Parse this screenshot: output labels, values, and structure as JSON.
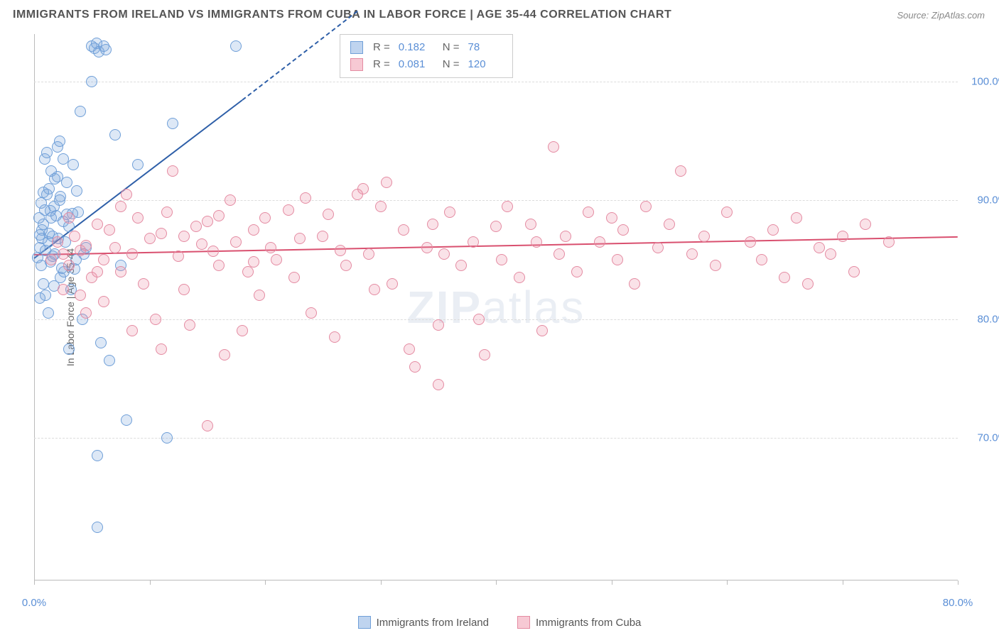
{
  "title": "IMMIGRANTS FROM IRELAND VS IMMIGRANTS FROM CUBA IN LABOR FORCE | AGE 35-44 CORRELATION CHART",
  "source": "Source: ZipAtlas.com",
  "y_axis_title": "In Labor Force | Age 35-44",
  "watermark_bold": "ZIP",
  "watermark_rest": "atlas",
  "chart": {
    "type": "scatter",
    "background_color": "#ffffff",
    "grid_color": "#dcdcdc",
    "axis_color": "#bbbbbb",
    "label_color": "#5b8fd6",
    "xlim": [
      0,
      80
    ],
    "ylim": [
      58,
      104
    ],
    "x_ticks": [
      0,
      10,
      20,
      30,
      40,
      50,
      60,
      70,
      80
    ],
    "x_tick_labels": {
      "0": "0.0%",
      "80": "80.0%"
    },
    "y_ticks": [
      70,
      80,
      90,
      100
    ],
    "y_tick_labels": {
      "70": "70.0%",
      "80": "80.0%",
      "90": "90.0%",
      "100": "100.0%"
    },
    "label_fontsize": 15,
    "marker_radius": 8,
    "marker_stroke_width": 1.5,
    "marker_fill_opacity": 0.25
  },
  "series": [
    {
      "name": "Immigrants from Ireland",
      "swatch_fill": "#bfd4ef",
      "swatch_border": "#6f9fd8",
      "marker_fill": "rgba(120,165,220,0.25)",
      "marker_stroke": "#6f9fd8",
      "trend_color": "#2e5fa8",
      "R": "0.182",
      "N": "78",
      "trend": {
        "x1": 0,
        "y1": 85.2,
        "x2": 18,
        "y2": 98.5,
        "dash_to_x": 28,
        "dash_to_y": 106
      },
      "points": [
        [
          0.3,
          85.2
        ],
        [
          0.5,
          86.0
        ],
        [
          0.6,
          84.5
        ],
        [
          0.7,
          87.5
        ],
        [
          0.8,
          88.0
        ],
        [
          0.9,
          89.2
        ],
        [
          1.0,
          85.8
        ],
        [
          1.1,
          90.5
        ],
        [
          1.2,
          86.5
        ],
        [
          1.3,
          91.0
        ],
        [
          1.4,
          84.8
        ],
        [
          1.5,
          88.5
        ],
        [
          1.6,
          87.0
        ],
        [
          1.7,
          89.5
        ],
        [
          1.8,
          85.5
        ],
        [
          2.0,
          92.0
        ],
        [
          2.1,
          86.8
        ],
        [
          2.2,
          90.0
        ],
        [
          2.3,
          83.5
        ],
        [
          2.5,
          88.2
        ],
        [
          2.6,
          84.0
        ],
        [
          2.8,
          91.5
        ],
        [
          3.0,
          87.8
        ],
        [
          3.2,
          82.5
        ],
        [
          3.4,
          93.0
        ],
        [
          3.6,
          85.0
        ],
        [
          3.8,
          89.0
        ],
        [
          4.0,
          97.5
        ],
        [
          4.2,
          80.0
        ],
        [
          4.5,
          86.0
        ],
        [
          5.0,
          103.0
        ],
        [
          5.2,
          102.8
        ],
        [
          5.4,
          103.2
        ],
        [
          5.6,
          102.5
        ],
        [
          5.8,
          78.0
        ],
        [
          6.0,
          103.0
        ],
        [
          6.2,
          102.7
        ],
        [
          6.5,
          76.5
        ],
        [
          7.0,
          95.5
        ],
        [
          7.5,
          84.5
        ],
        [
          8.0,
          71.5
        ],
        [
          9.0,
          93.0
        ],
        [
          3.0,
          77.5
        ],
        [
          0.8,
          83.0
        ],
        [
          1.0,
          82.0
        ],
        [
          1.2,
          80.5
        ],
        [
          0.5,
          81.8
        ],
        [
          2.0,
          94.5
        ],
        [
          5.5,
          68.5
        ],
        [
          5.5,
          62.5
        ],
        [
          11.5,
          70.0
        ],
        [
          12.0,
          96.5
        ],
        [
          17.5,
          103.0
        ],
        [
          5.0,
          100.0
        ],
        [
          3.5,
          84.2
        ],
        [
          2.8,
          88.8
        ],
        [
          1.5,
          92.5
        ],
        [
          0.9,
          93.5
        ],
        [
          1.1,
          94.0
        ],
        [
          2.2,
          95.0
        ],
        [
          0.4,
          88.5
        ],
        [
          0.6,
          89.8
        ],
        [
          1.8,
          91.8
        ],
        [
          2.5,
          93.5
        ],
        [
          0.7,
          86.8
        ],
        [
          1.3,
          87.2
        ],
        [
          1.6,
          85.3
        ],
        [
          1.9,
          88.7
        ],
        [
          2.3,
          90.3
        ],
        [
          0.5,
          87.1
        ],
        [
          1.4,
          89.1
        ],
        [
          2.7,
          86.5
        ],
        [
          3.3,
          88.9
        ],
        [
          3.7,
          90.8
        ],
        [
          4.3,
          85.5
        ],
        [
          1.7,
          82.8
        ],
        [
          2.4,
          84.3
        ],
        [
          0.8,
          90.7
        ]
      ]
    },
    {
      "name": "Immigrants from Cuba",
      "swatch_fill": "#f7c9d4",
      "swatch_border": "#e48ba2",
      "marker_fill": "rgba(235,140,165,0.25)",
      "marker_stroke": "#e48ba2",
      "trend_color": "#d9506f",
      "R": "0.081",
      "N": "120",
      "trend": {
        "x1": 0,
        "y1": 85.5,
        "x2": 80,
        "y2": 87.0
      },
      "points": [
        [
          1.5,
          85.0
        ],
        [
          2.0,
          86.5
        ],
        [
          2.5,
          85.5
        ],
        [
          3.0,
          84.5
        ],
        [
          3.5,
          87.0
        ],
        [
          4.0,
          85.8
        ],
        [
          4.5,
          86.2
        ],
        [
          5.0,
          83.5
        ],
        [
          5.5,
          88.0
        ],
        [
          6.0,
          85.0
        ],
        [
          6.5,
          87.5
        ],
        [
          7.0,
          86.0
        ],
        [
          7.5,
          84.0
        ],
        [
          8.0,
          90.5
        ],
        [
          8.5,
          85.5
        ],
        [
          9.0,
          88.5
        ],
        [
          9.5,
          83.0
        ],
        [
          10.0,
          86.8
        ],
        [
          10.5,
          80.0
        ],
        [
          11.0,
          87.2
        ],
        [
          11.5,
          89.0
        ],
        [
          12.0,
          92.5
        ],
        [
          12.5,
          85.3
        ],
        [
          13.0,
          82.5
        ],
        [
          13.5,
          79.5
        ],
        [
          14.0,
          87.8
        ],
        [
          14.5,
          86.3
        ],
        [
          15.0,
          88.2
        ],
        [
          15.5,
          85.7
        ],
        [
          16.0,
          84.5
        ],
        [
          16.5,
          77.0
        ],
        [
          17.0,
          90.0
        ],
        [
          17.5,
          86.5
        ],
        [
          18.0,
          79.0
        ],
        [
          18.5,
          84.0
        ],
        [
          19.0,
          87.5
        ],
        [
          19.5,
          82.0
        ],
        [
          20.0,
          88.5
        ],
        [
          20.5,
          86.0
        ],
        [
          21.0,
          85.0
        ],
        [
          22.0,
          89.2
        ],
        [
          22.5,
          83.5
        ],
        [
          23.0,
          86.8
        ],
        [
          24.0,
          80.5
        ],
        [
          25.0,
          87.0
        ],
        [
          25.5,
          88.8
        ],
        [
          26.0,
          78.5
        ],
        [
          27.0,
          84.5
        ],
        [
          28.0,
          90.5
        ],
        [
          28.5,
          91.0
        ],
        [
          29.0,
          85.5
        ],
        [
          30.0,
          89.5
        ],
        [
          30.5,
          91.5
        ],
        [
          31.0,
          83.0
        ],
        [
          32.0,
          87.5
        ],
        [
          32.5,
          77.5
        ],
        [
          33.0,
          76.0
        ],
        [
          34.0,
          86.0
        ],
        [
          34.5,
          88.0
        ],
        [
          35.0,
          79.5
        ],
        [
          35.5,
          85.5
        ],
        [
          36.0,
          89.0
        ],
        [
          37.0,
          84.5
        ],
        [
          38.0,
          86.5
        ],
        [
          38.5,
          80.0
        ],
        [
          39.0,
          77.0
        ],
        [
          40.0,
          87.8
        ],
        [
          40.5,
          85.0
        ],
        [
          41.0,
          89.5
        ],
        [
          42.0,
          83.5
        ],
        [
          43.0,
          88.0
        ],
        [
          43.5,
          86.5
        ],
        [
          44.0,
          79.0
        ],
        [
          45.0,
          94.5
        ],
        [
          45.5,
          85.5
        ],
        [
          46.0,
          87.0
        ],
        [
          47.0,
          84.0
        ],
        [
          48.0,
          89.0
        ],
        [
          49.0,
          86.5
        ],
        [
          50.0,
          88.5
        ],
        [
          50.5,
          85.0
        ],
        [
          51.0,
          87.5
        ],
        [
          52.0,
          83.0
        ],
        [
          53.0,
          89.5
        ],
        [
          54.0,
          86.0
        ],
        [
          55.0,
          88.0
        ],
        [
          56.0,
          92.5
        ],
        [
          57.0,
          85.5
        ],
        [
          58.0,
          87.0
        ],
        [
          59.0,
          84.5
        ],
        [
          60.0,
          89.0
        ],
        [
          62.0,
          86.5
        ],
        [
          63.0,
          85.0
        ],
        [
          64.0,
          87.5
        ],
        [
          65.0,
          83.5
        ],
        [
          66.0,
          88.5
        ],
        [
          67.0,
          83.0
        ],
        [
          68.0,
          86.0
        ],
        [
          69.0,
          85.5
        ],
        [
          70.0,
          87.0
        ],
        [
          71.0,
          84.0
        ],
        [
          72.0,
          88.0
        ],
        [
          15.0,
          71.0
        ],
        [
          4.0,
          82.0
        ],
        [
          5.5,
          84.0
        ],
        [
          74.0,
          86.5
        ],
        [
          3.0,
          88.5
        ],
        [
          6.0,
          81.5
        ],
        [
          7.5,
          89.5
        ],
        [
          2.5,
          82.5
        ],
        [
          4.5,
          80.5
        ],
        [
          8.5,
          79.0
        ],
        [
          11.0,
          77.5
        ],
        [
          13.0,
          87.0
        ],
        [
          16.0,
          88.7
        ],
        [
          19.0,
          84.8
        ],
        [
          23.5,
          90.2
        ],
        [
          26.5,
          85.8
        ],
        [
          29.5,
          82.5
        ],
        [
          35.0,
          74.5
        ]
      ]
    }
  ],
  "legend_labels": {
    "R": "R =",
    "N": "N ="
  }
}
